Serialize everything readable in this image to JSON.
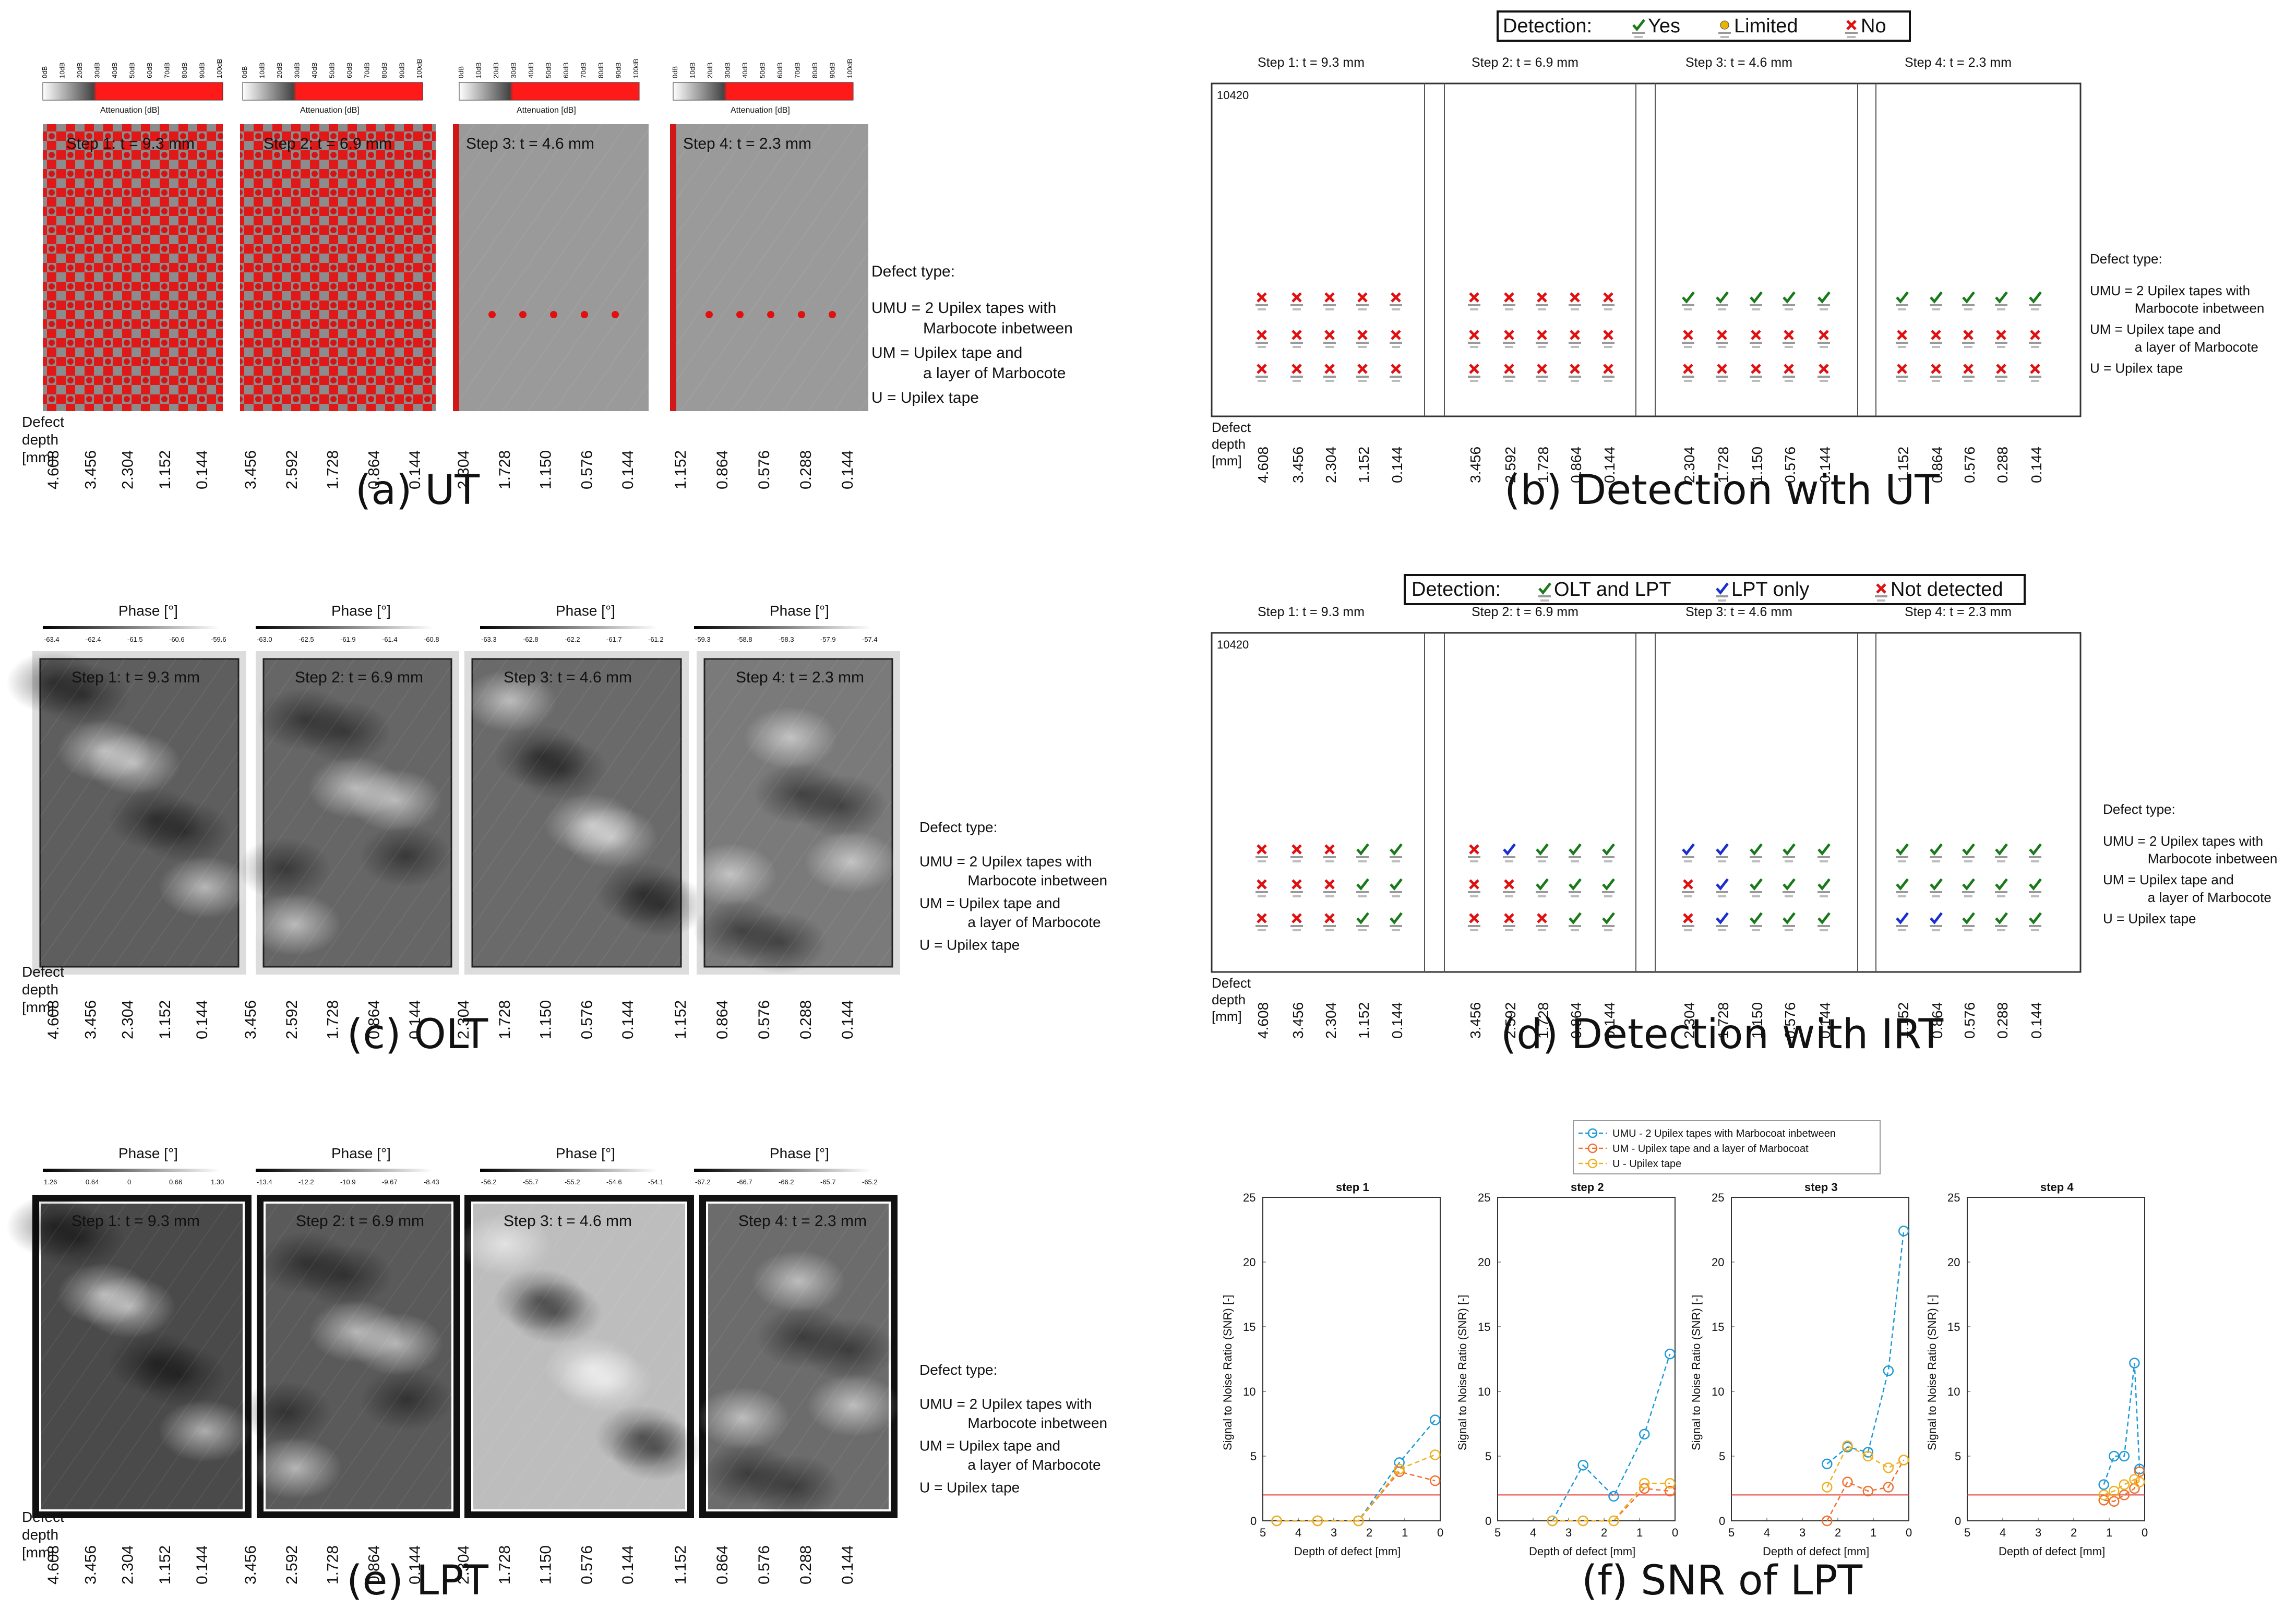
{
  "captions": {
    "a": "(a) UT",
    "b": "(b) Detection with UT",
    "c": "(c) OLT",
    "d": "(d) Detection with IRT",
    "e": "(e) LPT",
    "f": "(f) SNR of LPT"
  },
  "steps": [
    "Step 1: t = 9.3 mm",
    "Step 2: t = 6.9 mm",
    "Step 3: t = 4.6 mm",
    "Step 4: t = 2.3 mm"
  ],
  "depth_label": [
    "Defect",
    "depth",
    "[mm]"
  ],
  "depth_ticks": [
    [
      "4.608",
      "3.456",
      "2.304",
      "1.152",
      "0.144"
    ],
    [
      "3.456",
      "2.592",
      "1.728",
      "0.864",
      "0.144"
    ],
    [
      "2.304",
      "1.728",
      "1.150",
      "0.576",
      "0.144"
    ],
    [
      "1.152",
      "0.864",
      "0.576",
      "0.288",
      "0.144"
    ]
  ],
  "defect_type": {
    "title": "Defect type:",
    "umu_1": "UMU = 2 Upilex tapes with",
    "umu_2": "Marbocote inbetween",
    "um_1": "UM   = Upilex tape and",
    "um_2": "a layer of Marbocote",
    "u": "U      = Upilex tape"
  },
  "ut_colorbar": {
    "label": "Attenuation [dB]",
    "ticks": [
      "0dB",
      "10dB",
      "20dB",
      "30dB",
      "40dB",
      "50dB",
      "60dB",
      "70dB",
      "80dB",
      "90dB",
      "100dB"
    ]
  },
  "phase_label": "Phase [°]",
  "olt_colorbars": [
    [
      "-63.4",
      "-62.4",
      "-61.5",
      "-60.6",
      "-59.6"
    ],
    [
      "-63.0",
      "-62.5",
      "-61.9",
      "-61.4",
      "-60.8"
    ],
    [
      "-63.3",
      "-62.8",
      "-62.2",
      "-61.7",
      "-61.2"
    ],
    [
      "-59.3",
      "-58.8",
      "-58.3",
      "-57.9",
      "-57.4"
    ]
  ],
  "lpt_colorbars": [
    [
      "1.26",
      "0.64",
      "0",
      "0.66",
      "1.30"
    ],
    [
      "-13.4",
      "-12.2",
      "-10.9",
      "-9.67",
      "-8.43"
    ],
    [
      "-56.2",
      "-55.7",
      "-55.2",
      "-54.6",
      "-54.1"
    ],
    [
      "-67.2",
      "-66.7",
      "-66.2",
      "-65.7",
      "-65.2"
    ]
  ],
  "panel_id": "10420",
  "legend_b": {
    "title": "Detection:",
    "yes": "Yes",
    "limited": "Limited",
    "no": "No",
    "yes_color": "#1a7a1a",
    "limited_color": "#e8b400",
    "no_color": "#e01010"
  },
  "legend_d": {
    "title": "Detection:",
    "olt_lpt": "OLT and LPT",
    "lpt_only": "LPT only",
    "not_detected": "Not detected",
    "olt_lpt_color": "#1a7a1a",
    "lpt_only_color": "#1a2fd0",
    "not_color": "#e01010"
  },
  "detection_b": [
    [
      [
        "no",
        "no",
        "no",
        "no",
        "no"
      ],
      [
        "no",
        "no",
        "no",
        "no",
        "no"
      ],
      [
        "no",
        "no",
        "no",
        "no",
        "no"
      ]
    ],
    [
      [
        "no",
        "no",
        "no",
        "no",
        "no"
      ],
      [
        "no",
        "no",
        "no",
        "no",
        "no"
      ],
      [
        "no",
        "no",
        "no",
        "no",
        "no"
      ]
    ],
    [
      [
        "yes",
        "yes",
        "yes",
        "yes",
        "yes"
      ],
      [
        "no",
        "no",
        "no",
        "no",
        "no"
      ],
      [
        "no",
        "no",
        "no",
        "no",
        "no"
      ]
    ],
    [
      [
        "yes",
        "yes",
        "yes",
        "yes",
        "yes"
      ],
      [
        "no",
        "no",
        "no",
        "no",
        "no"
      ],
      [
        "no",
        "no",
        "no",
        "no",
        "no"
      ]
    ]
  ],
  "detection_d": [
    [
      [
        "no",
        "no",
        "no",
        "both",
        "both"
      ],
      [
        "no",
        "no",
        "no",
        "both",
        "both"
      ],
      [
        "no",
        "no",
        "no",
        "both",
        "both"
      ]
    ],
    [
      [
        "no",
        "lpt",
        "both",
        "both",
        "both"
      ],
      [
        "no",
        "no",
        "both",
        "both",
        "both"
      ],
      [
        "no",
        "no",
        "no",
        "both",
        "both"
      ]
    ],
    [
      [
        "lpt",
        "lpt",
        "both",
        "both",
        "both"
      ],
      [
        "no",
        "lpt",
        "both",
        "both",
        "both"
      ],
      [
        "no",
        "lpt",
        "both",
        "both",
        "both"
      ]
    ],
    [
      [
        "both",
        "both",
        "both",
        "both",
        "both"
      ],
      [
        "both",
        "both",
        "both",
        "both",
        "both"
      ],
      [
        "lpt",
        "lpt",
        "both",
        "both",
        "both"
      ]
    ]
  ],
  "chart_data": {
    "type": "line",
    "legend": [
      "UMU - 2 Upilex tapes with Marbocoat inbetween",
      "UM - Upilex tape and a layer of Marbocoat",
      "U - Upilex tape"
    ],
    "colors": [
      "#1f9ad6",
      "#f07030",
      "#f0b020"
    ],
    "threshold": 2,
    "threshold_color": "#e03030",
    "xlabel": "Depth of defect [mm]",
    "ylabel": "Signal to Noise Ratio (SNR) [-]",
    "xlim": [
      5,
      0
    ],
    "ylim": [
      0,
      25
    ],
    "xticks": [
      "5",
      "4",
      "3",
      "2",
      "1",
      "0"
    ],
    "yticks": [
      "0",
      "5",
      "10",
      "15",
      "20",
      "25"
    ],
    "subplots": [
      {
        "title": "step 1",
        "x": [
          4.608,
          3.456,
          2.304,
          1.152,
          0.144
        ],
        "series": [
          [
            0,
            0,
            0,
            4.5,
            7.8
          ],
          [
            0,
            0,
            0,
            3.8,
            3.1
          ],
          [
            0,
            0,
            0,
            4.0,
            5.1
          ]
        ]
      },
      {
        "title": "step 2",
        "x": [
          3.456,
          2.592,
          1.728,
          0.864,
          0.144
        ],
        "series": [
          [
            0,
            4.3,
            1.9,
            6.7,
            12.9
          ],
          [
            0,
            0,
            0,
            2.5,
            2.3
          ],
          [
            0,
            0,
            0,
            2.9,
            2.9
          ]
        ]
      },
      {
        "title": "step 3",
        "x": [
          2.304,
          1.728,
          1.15,
          0.576,
          0.144
        ],
        "series": [
          [
            4.4,
            5.7,
            5.3,
            11.6,
            22.4
          ],
          [
            0,
            3.0,
            2.3,
            2.6,
            4.7
          ],
          [
            2.6,
            5.8,
            5.0,
            4.1,
            4.7
          ]
        ]
      },
      {
        "title": "step 4",
        "x": [
          1.152,
          0.864,
          0.576,
          0.288,
          0.144
        ],
        "series": [
          [
            2.8,
            5.0,
            5.0,
            12.2,
            4.0
          ],
          [
            1.6,
            1.5,
            2.0,
            2.5,
            3.8
          ],
          [
            2.0,
            2.3,
            2.8,
            3.2,
            3.0
          ]
        ]
      }
    ]
  }
}
